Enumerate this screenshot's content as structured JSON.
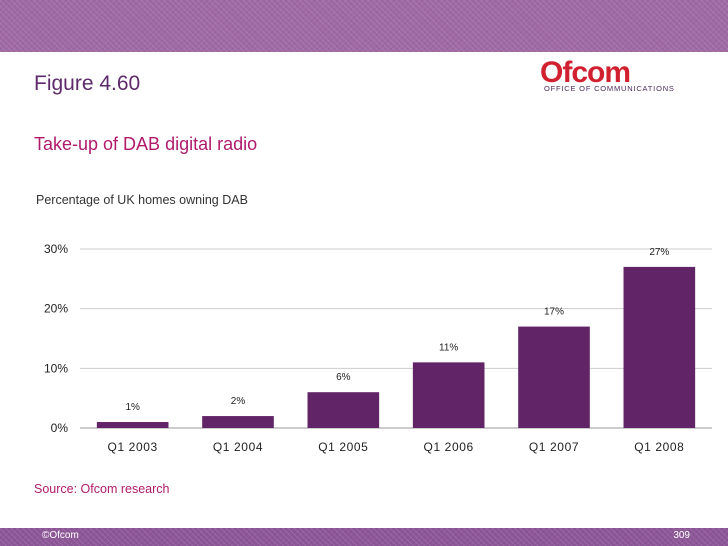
{
  "slide": {
    "figure_title": "Figure 4.60",
    "subtitle": "Take-up of DAB digital radio",
    "source": "Source: Ofcom research",
    "footer_left": "©Ofcom",
    "page_number": "309"
  },
  "logo": {
    "wordmark": "Ofcom",
    "tagline": "OFFICE OF COMMUNICATIONS"
  },
  "colors": {
    "bar": "#612466",
    "title": "#5e2a6a",
    "accent": "#b01b6b",
    "logo_red": "#d1202f",
    "grid": "#cccccc"
  },
  "chart_data": {
    "type": "bar",
    "title": "Percentage of UK homes owning DAB",
    "categories": [
      "Q1 2003",
      "Q1 2004",
      "Q1 2005",
      "Q1 2006",
      "Q1 2007",
      "Q1 2008"
    ],
    "values": [
      1,
      2,
      6,
      11,
      17,
      27
    ],
    "data_labels": [
      "1%",
      "2%",
      "6%",
      "11%",
      "17%",
      "27%"
    ],
    "y_ticks": [
      "0%",
      "10%",
      "20%",
      "30%"
    ],
    "ylim": [
      0,
      30
    ],
    "grid": true,
    "legend": "none"
  }
}
